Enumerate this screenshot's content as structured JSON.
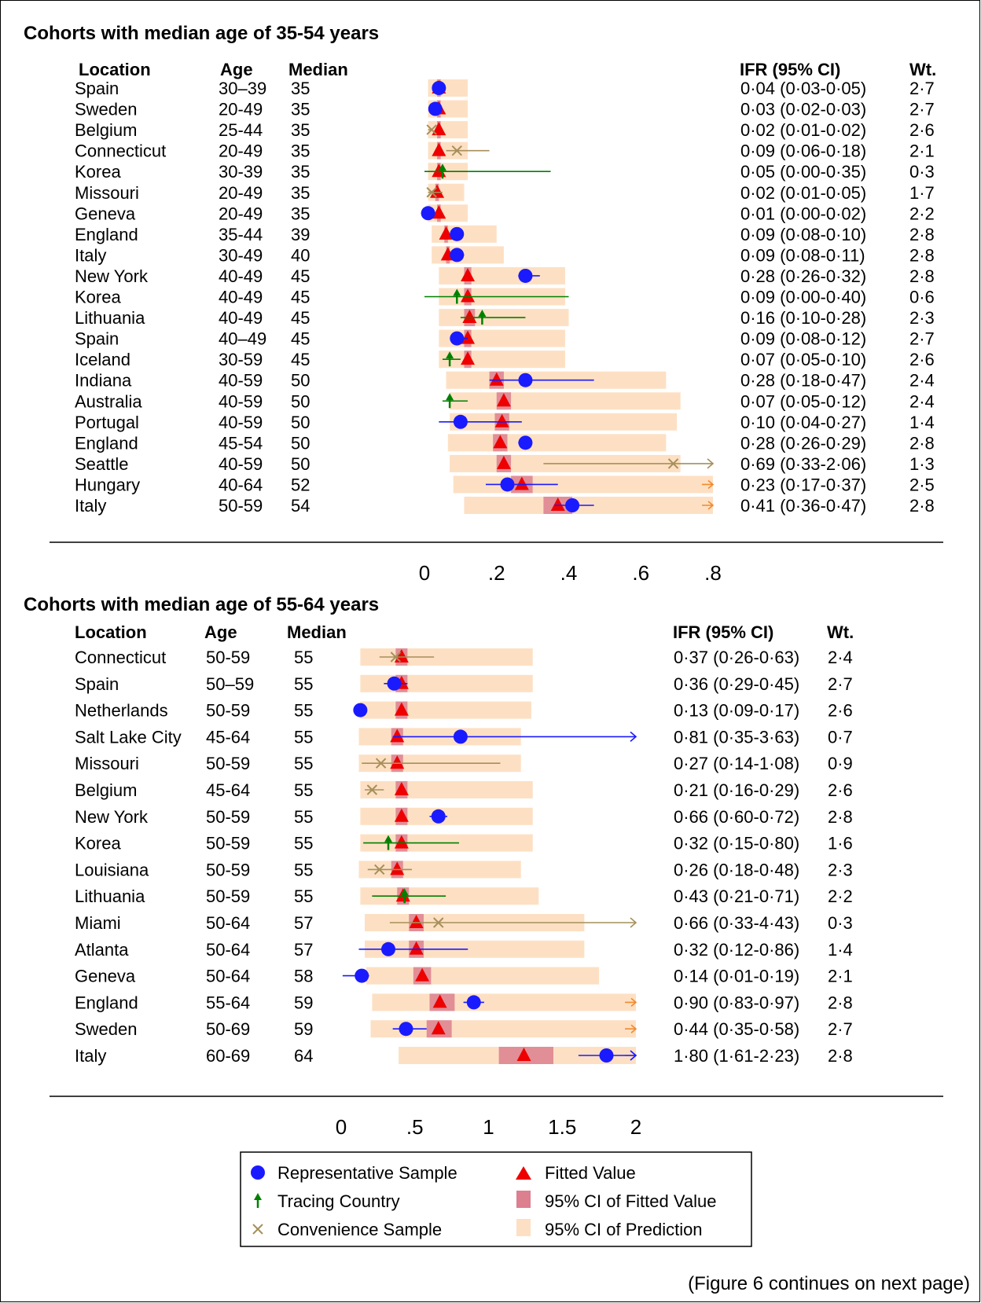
{
  "footnote": "(Figure 6 continues on next page)",
  "colors": {
    "representative": "#1a1aff",
    "tracing": "#008000",
    "convenience": "#a68f5a",
    "fitted": "#ee0000",
    "ci_fitted": "#dc7f8f",
    "ci_prediction": "#fde0c3"
  },
  "legend": {
    "representative": "Representative Sample",
    "tracing": "Tracing Country",
    "convenience": "Convenience Sample",
    "fitted": "Fitted Value",
    "ci_fitted": "95% CI of Fitted Value",
    "ci_prediction": "95% CI of Prediction"
  },
  "chart_data": [
    {
      "type": "forest",
      "title": "Cohorts with median age of 35-54 years",
      "columns": {
        "location": "Location",
        "age": "Age",
        "median": "Median",
        "ifr": "IFR (95% CI)",
        "wt": "Wt."
      },
      "xticks": [
        "0",
        ".2",
        ".4",
        ".6",
        ".8"
      ],
      "xticks_values": [
        0,
        0.2,
        0.4,
        0.6,
        0.8
      ],
      "xlim": [
        0,
        0.8
      ],
      "rows": [
        {
          "location": "Spain",
          "age": "30–39",
          "median": "35",
          "ifr": "0·04 (0·03-0·05)",
          "wt": "2·7",
          "sample": "representative",
          "point": 0.04,
          "ci": [
            0.03,
            0.05
          ],
          "fitted": 0.04,
          "fitted_ci": [
            0.035,
            0.045
          ],
          "pred_ci": [
            0.01,
            0.12
          ]
        },
        {
          "location": "Sweden",
          "age": "20-49",
          "median": "35",
          "ifr": "0·03 (0·02-0·03)",
          "wt": "2·7",
          "sample": "representative",
          "point": 0.03,
          "ci": [
            0.02,
            0.03
          ],
          "fitted": 0.04,
          "fitted_ci": [
            0.035,
            0.045
          ],
          "pred_ci": [
            0.01,
            0.12
          ]
        },
        {
          "location": "Belgium",
          "age": "25-44",
          "median": "35",
          "ifr": "0·02 (0·01-0·02)",
          "wt": "2·6",
          "sample": "convenience",
          "point": 0.02,
          "ci": [
            0.01,
            0.02
          ],
          "fitted": 0.04,
          "fitted_ci": [
            0.035,
            0.045
          ],
          "pred_ci": [
            0.01,
            0.12
          ]
        },
        {
          "location": "Connecticut",
          "age": "20-49",
          "median": "35",
          "ifr": "0·09 (0·06-0·18)",
          "wt": "2·1",
          "sample": "convenience",
          "point": 0.09,
          "ci": [
            0.06,
            0.18
          ],
          "fitted": 0.04,
          "fitted_ci": [
            0.035,
            0.045
          ],
          "pred_ci": [
            0.01,
            0.12
          ]
        },
        {
          "location": "Korea",
          "age": "30-39",
          "median": "35",
          "ifr": "0·05 (0·00-0·35)",
          "wt": "0·3",
          "sample": "tracing",
          "point": 0.05,
          "ci": [
            0.0,
            0.35
          ],
          "fitted": 0.04,
          "fitted_ci": [
            0.035,
            0.045
          ],
          "pred_ci": [
            0.01,
            0.12
          ]
        },
        {
          "location": "Missouri",
          "age": "20-49",
          "median": "35",
          "ifr": "0·02 (0·01-0·05)",
          "wt": "1·7",
          "sample": "convenience",
          "point": 0.02,
          "ci": [
            0.01,
            0.05
          ],
          "fitted": 0.035,
          "fitted_ci": [
            0.03,
            0.04
          ],
          "pred_ci": [
            0.01,
            0.11
          ]
        },
        {
          "location": "Geneva",
          "age": "20-49",
          "median": "35",
          "ifr": "0·01 (0·00-0·02)",
          "wt": "2·2",
          "sample": "representative",
          "point": 0.01,
          "ci": [
            0.0,
            0.02
          ],
          "fitted": 0.04,
          "fitted_ci": [
            0.035,
            0.045
          ],
          "pred_ci": [
            0.01,
            0.12
          ]
        },
        {
          "location": "England",
          "age": "35-44",
          "median": "39",
          "ifr": "0·09 (0·08-0·10)",
          "wt": "2·8",
          "sample": "representative",
          "point": 0.09,
          "ci": [
            0.08,
            0.1
          ],
          "fitted": 0.06,
          "fitted_ci": [
            0.055,
            0.065
          ],
          "pred_ci": [
            0.02,
            0.2
          ]
        },
        {
          "location": "Italy",
          "age": "30-49",
          "median": "40",
          "ifr": "0·09 (0·08-0·11)",
          "wt": "2·8",
          "sample": "representative",
          "point": 0.09,
          "ci": [
            0.08,
            0.11
          ],
          "fitted": 0.065,
          "fitted_ci": [
            0.06,
            0.07
          ],
          "pred_ci": [
            0.02,
            0.22
          ]
        },
        {
          "location": "New York",
          "age": "40-49",
          "median": "45",
          "ifr": "0·28 (0·26-0·32)",
          "wt": "2·8",
          "sample": "representative",
          "point": 0.28,
          "ci": [
            0.26,
            0.32
          ],
          "fitted": 0.12,
          "fitted_ci": [
            0.11,
            0.13
          ],
          "pred_ci": [
            0.04,
            0.39
          ]
        },
        {
          "location": "Korea",
          "age": "40-49",
          "median": "45",
          "ifr": "0·09 (0·00-0·40)",
          "wt": "0·6",
          "sample": "tracing",
          "point": 0.09,
          "ci": [
            0.0,
            0.4
          ],
          "fitted": 0.12,
          "fitted_ci": [
            0.11,
            0.13
          ],
          "pred_ci": [
            0.04,
            0.39
          ]
        },
        {
          "location": "Lithuania",
          "age": "40-49",
          "median": "45",
          "ifr": "0·16 (0·10-0·28)",
          "wt": "2·3",
          "sample": "tracing",
          "point": 0.16,
          "ci": [
            0.1,
            0.28
          ],
          "fitted": 0.125,
          "fitted_ci": [
            0.11,
            0.14
          ],
          "pred_ci": [
            0.04,
            0.4
          ]
        },
        {
          "location": "Spain",
          "age": "40–49",
          "median": "45",
          "ifr": "0·09 (0·08-0·12)",
          "wt": "2·7",
          "sample": "representative",
          "point": 0.09,
          "ci": [
            0.08,
            0.12
          ],
          "fitted": 0.12,
          "fitted_ci": [
            0.11,
            0.13
          ],
          "pred_ci": [
            0.04,
            0.39
          ]
        },
        {
          "location": "Iceland",
          "age": "30-59",
          "median": "45",
          "ifr": "0·07 (0·05-0·10)",
          "wt": "2·6",
          "sample": "tracing",
          "point": 0.07,
          "ci": [
            0.05,
            0.1
          ],
          "fitted": 0.12,
          "fitted_ci": [
            0.11,
            0.13
          ],
          "pred_ci": [
            0.04,
            0.39
          ]
        },
        {
          "location": "Indiana",
          "age": "40-59",
          "median": "50",
          "ifr": "0·28 (0·18-0·47)",
          "wt": "2·4",
          "sample": "representative",
          "point": 0.28,
          "ci": [
            0.18,
            0.47
          ],
          "fitted": 0.2,
          "fitted_ci": [
            0.18,
            0.22
          ],
          "pred_ci": [
            0.06,
            0.67
          ]
        },
        {
          "location": "Australia",
          "age": "40-59",
          "median": "50",
          "ifr": "0·07 (0·05-0·12)",
          "wt": "2·4",
          "sample": "tracing",
          "point": 0.07,
          "ci": [
            0.05,
            0.12
          ],
          "fitted": 0.22,
          "fitted_ci": [
            0.2,
            0.24
          ],
          "pred_ci": [
            0.07,
            0.71
          ]
        },
        {
          "location": "Portugal",
          "age": "40-59",
          "median": "50",
          "ifr": "0·10 (0·04-0·27)",
          "wt": "1·4",
          "sample": "representative",
          "point": 0.1,
          "ci": [
            0.04,
            0.27
          ],
          "fitted": 0.215,
          "fitted_ci": [
            0.195,
            0.235
          ],
          "pred_ci": [
            0.07,
            0.7
          ]
        },
        {
          "location": "England",
          "age": "45-54",
          "median": "50",
          "ifr": "0·28 (0·26-0·29)",
          "wt": "2·8",
          "sample": "representative",
          "point": 0.28,
          "ci": [
            0.26,
            0.29
          ],
          "fitted": 0.21,
          "fitted_ci": [
            0.19,
            0.23
          ],
          "pred_ci": [
            0.065,
            0.67
          ]
        },
        {
          "location": "Seattle",
          "age": "40-59",
          "median": "50",
          "ifr": "0·69 (0·33-2·06)",
          "wt": "1·3",
          "sample": "convenience",
          "point": 0.69,
          "ci": [
            0.33,
            2.06
          ],
          "fitted": 0.22,
          "fitted_ci": [
            0.2,
            0.24
          ],
          "pred_ci": [
            0.07,
            0.71
          ]
        },
        {
          "location": "Hungary",
          "age": "40-64",
          "median": "52",
          "ifr": "0·23 (0·17-0·37)",
          "wt": "2·5",
          "sample": "representative",
          "point": 0.23,
          "ci": [
            0.17,
            0.37
          ],
          "fitted": 0.27,
          "fitted_ci": [
            0.24,
            0.3
          ],
          "pred_ci": [
            0.08,
            0.9
          ]
        },
        {
          "location": "Italy",
          "age": "50-59",
          "median": "54",
          "ifr": "0·41 (0·36-0·47)",
          "wt": "2·8",
          "sample": "representative",
          "point": 0.41,
          "ci": [
            0.36,
            0.47
          ],
          "fitted": 0.37,
          "fitted_ci": [
            0.33,
            0.41
          ],
          "pred_ci": [
            0.11,
            1.2
          ]
        }
      ]
    },
    {
      "type": "forest",
      "title": "Cohorts with median age of 55-64 years",
      "columns": {
        "location": "Location",
        "age": "Age",
        "median": "Median",
        "ifr": "IFR (95% CI)",
        "wt": "Wt."
      },
      "xticks": [
        "0",
        ".5",
        "1",
        "1.5",
        "2"
      ],
      "xticks_values": [
        0,
        0.5,
        1,
        1.5,
        2
      ],
      "xlim": [
        0,
        2
      ],
      "rows": [
        {
          "location": "Connecticut",
          "age": "50-59",
          "median": "55",
          "ifr": "0·37 (0·26-0·63)",
          "wt": "2·4",
          "sample": "convenience",
          "point": 0.37,
          "ci": [
            0.26,
            0.63
          ],
          "fitted": 0.41,
          "fitted_ci": [
            0.37,
            0.45
          ],
          "pred_ci": [
            0.13,
            1.3
          ]
        },
        {
          "location": "Spain",
          "age": "50–59",
          "median": "55",
          "ifr": "0·36 (0·29-0·45)",
          "wt": "2·7",
          "sample": "representative",
          "point": 0.36,
          "ci": [
            0.29,
            0.45
          ],
          "fitted": 0.41,
          "fitted_ci": [
            0.37,
            0.45
          ],
          "pred_ci": [
            0.13,
            1.3
          ]
        },
        {
          "location": "Netherlands",
          "age": "50-59",
          "median": "55",
          "ifr": "0·13 (0·09-0·17)",
          "wt": "2·6",
          "sample": "representative",
          "point": 0.13,
          "ci": [
            0.09,
            0.17
          ],
          "fitted": 0.41,
          "fitted_ci": [
            0.37,
            0.45
          ],
          "pred_ci": [
            0.13,
            1.29
          ]
        },
        {
          "location": "Salt Lake City",
          "age": "45-64",
          "median": "55",
          "ifr": "0·81 (0·35-3·63)",
          "wt": "0·7",
          "sample": "representative",
          "point": 0.81,
          "ci": [
            0.35,
            3.63
          ],
          "fitted": 0.38,
          "fitted_ci": [
            0.34,
            0.42
          ],
          "pred_ci": [
            0.12,
            1.22
          ]
        },
        {
          "location": "Missouri",
          "age": "50-59",
          "median": "55",
          "ifr": "0·27 (0·14-1·08)",
          "wt": "0·9",
          "sample": "convenience",
          "point": 0.27,
          "ci": [
            0.14,
            1.08
          ],
          "fitted": 0.38,
          "fitted_ci": [
            0.34,
            0.42
          ],
          "pred_ci": [
            0.12,
            1.22
          ]
        },
        {
          "location": "Belgium",
          "age": "45-64",
          "median": "55",
          "ifr": "0·21 (0·16-0·29)",
          "wt": "2·6",
          "sample": "convenience",
          "point": 0.21,
          "ci": [
            0.16,
            0.29
          ],
          "fitted": 0.41,
          "fitted_ci": [
            0.37,
            0.45
          ],
          "pred_ci": [
            0.13,
            1.3
          ]
        },
        {
          "location": "New York",
          "age": "50-59",
          "median": "55",
          "ifr": "0·66 (0·60-0·72)",
          "wt": "2·8",
          "sample": "representative",
          "point": 0.66,
          "ci": [
            0.6,
            0.72
          ],
          "fitted": 0.41,
          "fitted_ci": [
            0.37,
            0.45
          ],
          "pred_ci": [
            0.13,
            1.3
          ]
        },
        {
          "location": "Korea",
          "age": "50-59",
          "median": "55",
          "ifr": "0·32 (0·15-0·80)",
          "wt": "1·6",
          "sample": "tracing",
          "point": 0.32,
          "ci": [
            0.15,
            0.8
          ],
          "fitted": 0.41,
          "fitted_ci": [
            0.37,
            0.45
          ],
          "pred_ci": [
            0.13,
            1.3
          ]
        },
        {
          "location": "Louisiana",
          "age": "50-59",
          "median": "55",
          "ifr": "0·26 (0·18-0·48)",
          "wt": "2·3",
          "sample": "convenience",
          "point": 0.26,
          "ci": [
            0.18,
            0.48
          ],
          "fitted": 0.38,
          "fitted_ci": [
            0.34,
            0.42
          ],
          "pred_ci": [
            0.12,
            1.22
          ]
        },
        {
          "location": "Lithuania",
          "age": "50-59",
          "median": "55",
          "ifr": "0·43 (0·21-0·71)",
          "wt": "2·2",
          "sample": "tracing",
          "point": 0.43,
          "ci": [
            0.21,
            0.71
          ],
          "fitted": 0.42,
          "fitted_ci": [
            0.38,
            0.46
          ],
          "pred_ci": [
            0.13,
            1.34
          ]
        },
        {
          "location": "Miami",
          "age": "50-64",
          "median": "57",
          "ifr": "0·66 (0·33-4·43)",
          "wt": "0·3",
          "sample": "convenience",
          "point": 0.66,
          "ci": [
            0.33,
            4.43
          ],
          "fitted": 0.51,
          "fitted_ci": [
            0.46,
            0.56
          ],
          "pred_ci": [
            0.16,
            1.65
          ]
        },
        {
          "location": "Atlanta",
          "age": "50-64",
          "median": "57",
          "ifr": "0·32 (0·12-0·86)",
          "wt": "1·4",
          "sample": "representative",
          "point": 0.32,
          "ci": [
            0.12,
            0.86
          ],
          "fitted": 0.51,
          "fitted_ci": [
            0.46,
            0.56
          ],
          "pred_ci": [
            0.16,
            1.65
          ]
        },
        {
          "location": "Geneva",
          "age": "50-64",
          "median": "58",
          "ifr": "0·14 (0·01-0·19)",
          "wt": "2·1",
          "sample": "representative",
          "point": 0.14,
          "ci": [
            0.01,
            0.19
          ],
          "fitted": 0.55,
          "fitted_ci": [
            0.49,
            0.61
          ],
          "pred_ci": [
            0.17,
            1.75
          ]
        },
        {
          "location": "England",
          "age": "55-64",
          "median": "59",
          "ifr": "0·90 (0·83-0·97)",
          "wt": "2·8",
          "sample": "representative",
          "point": 0.9,
          "ci": [
            0.83,
            0.97
          ],
          "fitted": 0.67,
          "fitted_ci": [
            0.6,
            0.77
          ],
          "pred_ci": [
            0.21,
            2.2
          ]
        },
        {
          "location": "Sweden",
          "age": "50-69",
          "median": "59",
          "ifr": "0·44 (0·35-0·58)",
          "wt": "2·7",
          "sample": "representative",
          "point": 0.44,
          "ci": [
            0.35,
            0.58
          ],
          "fitted": 0.66,
          "fitted_ci": [
            0.58,
            0.75
          ],
          "pred_ci": [
            0.2,
            2.2
          ]
        },
        {
          "location": "Italy",
          "age": "60-69",
          "median": "64",
          "ifr": "1·80 (1·61-2·23)",
          "wt": "2·8",
          "sample": "representative",
          "point": 1.8,
          "ci": [
            1.61,
            2.23
          ],
          "fitted": 1.24,
          "fitted_ci": [
            1.07,
            1.44
          ],
          "pred_ci": [
            0.39,
            3.9
          ]
        }
      ]
    }
  ]
}
